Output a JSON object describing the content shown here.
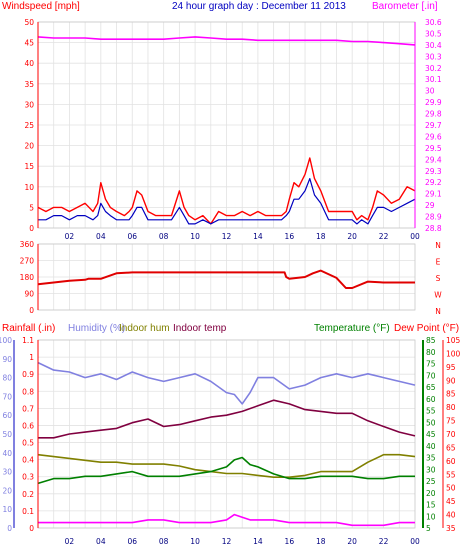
{
  "header": {
    "wind_title": "Windspeed [mph]",
    "graph_title": "24 hour graph day : December 11 2013",
    "baro_title": "Barometer [.in]"
  },
  "lower_header": {
    "rain": "Rainfall (.in)",
    "humidity": "Humidity (%)",
    "indoor_hum": "Indoor hum",
    "indoor_temp": "Indoor temp",
    "temperature": "Temperature (°F)",
    "dew": "Dew Point (°F)"
  },
  "colors": {
    "wind_gust": "#ff0000",
    "wind_avg": "#0000c0",
    "baro": "#ff00ff",
    "direction": "#e00000",
    "rain_axis": "#ff0000",
    "humidity": "#8080e0",
    "indoor_hum": "#808000",
    "indoor_temp": "#800040",
    "temperature": "#008000",
    "dew": "#ff00ff",
    "dew_axis": "#ff0000"
  },
  "chart_data": [
    {
      "type": "line",
      "title": "24 hour graph day : December 11 2013",
      "xlabel": "",
      "x_ticks": [
        "02",
        "04",
        "06",
        "08",
        "10",
        "12",
        "14",
        "16",
        "18",
        "20",
        "22",
        "00"
      ],
      "xlim": [
        0,
        24
      ],
      "left_axis": {
        "label": "Windspeed [mph]",
        "ylim": [
          0,
          50
        ],
        "ticks": [
          0,
          5,
          10,
          15,
          20,
          25,
          30,
          35,
          40,
          45,
          50
        ]
      },
      "right_axis": {
        "label": "Barometer [.in]",
        "ylim": [
          28.8,
          30.6
        ],
        "ticks": [
          "28.8",
          "28.9",
          "29",
          "29.1",
          "29.2",
          "29.3",
          "29.4",
          "29.5",
          "29.6",
          "29.7",
          "29.8",
          "29.9",
          "30",
          "30.1",
          "30.2",
          "30.3",
          "30.4",
          "30.5",
          "30.6"
        ]
      },
      "grid": true,
      "series": [
        {
          "axis": "left",
          "x": [
            0,
            0.5,
            1,
            1.5,
            2,
            2.5,
            3,
            3.5,
            3.8,
            4,
            4.3,
            4.6,
            5,
            5.5,
            5.8,
            6,
            6.3,
            6.6,
            7,
            7.5,
            8,
            8.5,
            9,
            9.3,
            9.6,
            10,
            10.5,
            11,
            11.5,
            12,
            12.5,
            13,
            13.5,
            14,
            14.5,
            15,
            15.5,
            15.8,
            16,
            16.3,
            16.6,
            17,
            17.3,
            17.6,
            18,
            18.5,
            19,
            19.5,
            20,
            20.3,
            20.6,
            21,
            21.3,
            21.6,
            22,
            22.5,
            23,
            23.5,
            24
          ],
          "values": [
            5,
            4,
            5,
            5,
            4,
            5,
            6,
            4,
            6,
            11,
            7,
            5,
            4,
            3,
            4,
            5,
            9,
            8,
            4,
            3,
            3,
            3,
            9,
            5,
            3,
            2,
            3,
            1,
            4,
            3,
            3,
            4,
            3,
            4,
            3,
            3,
            3,
            4,
            7,
            11,
            10,
            13,
            17,
            12,
            9,
            4,
            4,
            4,
            4,
            2,
            3,
            2,
            5,
            9,
            8,
            6,
            7,
            10,
            9
          ]
        },
        {
          "axis": "left",
          "x": [
            0,
            0.5,
            1,
            1.5,
            2,
            2.5,
            3,
            3.5,
            3.8,
            4,
            4.3,
            4.6,
            5,
            5.5,
            5.8,
            6,
            6.3,
            6.6,
            7,
            7.5,
            8,
            8.5,
            9,
            9.3,
            9.6,
            10,
            10.5,
            11,
            11.5,
            12,
            12.5,
            13,
            13.5,
            14,
            14.5,
            15,
            15.5,
            15.8,
            16,
            16.3,
            16.6,
            17,
            17.3,
            17.6,
            18,
            18.5,
            19,
            19.5,
            20,
            20.3,
            20.6,
            21,
            21.3,
            21.6,
            22,
            22.5,
            23,
            23.5,
            24
          ],
          "values": [
            2,
            2,
            3,
            3,
            2,
            3,
            3,
            2,
            3,
            6,
            4,
            3,
            2,
            2,
            2,
            3,
            5,
            5,
            2,
            2,
            2,
            2,
            5,
            3,
            1,
            1,
            2,
            1,
            2,
            2,
            2,
            2,
            2,
            2,
            2,
            2,
            2,
            3,
            4,
            7,
            7,
            9,
            12,
            8,
            6,
            2,
            2,
            2,
            2,
            1,
            2,
            1,
            3,
            5,
            5,
            4,
            5,
            6,
            7
          ]
        },
        {
          "axis": "right",
          "x": [
            0,
            1,
            2,
            3,
            4,
            5,
            6,
            7,
            8,
            9,
            10,
            11,
            12,
            13,
            14,
            15,
            16,
            17,
            18,
            19,
            20,
            21,
            22,
            23,
            24
          ],
          "values": [
            30.47,
            30.46,
            30.46,
            30.46,
            30.45,
            30.45,
            30.45,
            30.45,
            30.45,
            30.46,
            30.47,
            30.46,
            30.45,
            30.45,
            30.44,
            30.44,
            30.44,
            30.44,
            30.44,
            30.44,
            30.43,
            30.43,
            30.42,
            30.41,
            30.4
          ]
        }
      ]
    },
    {
      "type": "line",
      "xlim": [
        0,
        24
      ],
      "y_ticks_left": [
        0,
        90,
        180,
        270,
        360
      ],
      "y_ticks_right": [
        "N",
        "W",
        "S",
        "E",
        "N"
      ],
      "ylim": [
        0,
        360
      ],
      "series": [
        {
          "x": [
            0,
            1,
            2,
            3,
            3.2,
            4,
            5,
            6,
            8,
            10,
            12,
            14,
            15.7,
            15.8,
            16,
            17,
            17.5,
            18,
            19,
            19.6,
            20,
            21,
            22,
            23,
            24
          ],
          "values": [
            140,
            150,
            160,
            165,
            170,
            170,
            200,
            205,
            205,
            205,
            205,
            205,
            205,
            180,
            170,
            180,
            200,
            215,
            175,
            120,
            120,
            155,
            150,
            150,
            150
          ]
        }
      ]
    },
    {
      "type": "line",
      "x_ticks": [
        "02",
        "04",
        "06",
        "08",
        "10",
        "12",
        "14",
        "16",
        "18",
        "20",
        "22",
        "00"
      ],
      "xlim": [
        0,
        24
      ],
      "axes": {
        "rain": {
          "label": "Rainfall (.in)",
          "ylim": [
            0,
            1.1
          ],
          "ticks": [
            0,
            0.1,
            0.2,
            0.3,
            0.4,
            0.5,
            0.6,
            0.7,
            0.8,
            0.9,
            1,
            1.1
          ]
        },
        "humidity": {
          "label": "Humidity (%)",
          "ylim": [
            0,
            100
          ],
          "ticks": [
            0,
            10,
            20,
            30,
            40,
            50,
            60,
            70,
            80,
            90,
            100
          ]
        },
        "temperature": {
          "label": "Temperature (°F)",
          "ylim": [
            5,
            85
          ],
          "ticks": [
            5,
            10,
            15,
            20,
            25,
            30,
            35,
            40,
            45,
            50,
            55,
            60,
            65,
            70,
            75,
            80,
            85
          ]
        },
        "dew": {
          "label": "Dew Point (°F)",
          "ylim": [
            35,
            105
          ],
          "ticks": [
            35,
            40,
            45,
            50,
            55,
            60,
            65,
            70,
            75,
            80,
            85,
            90,
            95,
            100,
            105
          ]
        }
      },
      "series": [
        {
          "axis": "humidity",
          "x": [
            0,
            1,
            2,
            3,
            4,
            5,
            6,
            7,
            8,
            9,
            10,
            11,
            12,
            12.5,
            13,
            13.5,
            14,
            15,
            16,
            17,
            18,
            19,
            20,
            21,
            22,
            23,
            24
          ],
          "values": [
            88,
            84,
            83,
            80,
            82,
            79,
            83,
            80,
            78,
            80,
            82,
            78,
            72,
            71,
            66,
            72,
            80,
            80,
            74,
            76,
            80,
            82,
            80,
            82,
            80,
            78,
            76
          ]
        },
        {
          "axis": "humidity",
          "x": [
            0,
            1,
            2,
            3,
            4,
            5,
            6,
            7,
            8,
            9,
            10,
            11,
            12,
            13,
            14,
            15,
            16,
            17,
            18,
            19,
            20,
            21,
            22,
            23,
            24
          ],
          "values": [
            39,
            38,
            37,
            36,
            35,
            35,
            34,
            34,
            34,
            33,
            31,
            30,
            29,
            29,
            28,
            27,
            27,
            28,
            30,
            30,
            30,
            35,
            39,
            39,
            38
          ]
        },
        {
          "axis": "humidity",
          "x": [
            0,
            1,
            2,
            3,
            4,
            5,
            6,
            7,
            8,
            9,
            10,
            11,
            12,
            13,
            14,
            15,
            16,
            17,
            18,
            19,
            20,
            21,
            22,
            23,
            24
          ],
          "values": [
            48,
            48,
            50,
            51,
            52,
            53,
            56,
            58,
            54,
            55,
            57,
            59,
            60,
            62,
            65,
            68,
            66,
            63,
            62,
            61,
            61,
            57,
            54,
            51,
            49
          ]
        },
        {
          "axis": "temperature",
          "x": [
            0,
            1,
            2,
            3,
            4,
            5,
            6,
            7,
            8,
            9,
            10,
            11,
            12,
            12.5,
            13,
            13.5,
            14,
            15,
            16,
            17,
            18,
            19,
            20,
            21,
            22,
            23,
            24
          ],
          "values": [
            24,
            26,
            26,
            27,
            27,
            28,
            29,
            27,
            27,
            27,
            28,
            29,
            31,
            34,
            35,
            32,
            31,
            28,
            26,
            26,
            27,
            27,
            27,
            26,
            26,
            27,
            27
          ]
        },
        {
          "axis": "dew",
          "x": [
            0,
            1,
            2,
            3,
            4,
            5,
            6,
            7,
            8,
            9,
            10,
            11,
            12,
            12.5,
            13,
            13.5,
            14,
            15,
            16,
            17,
            18,
            19,
            20,
            21,
            22,
            23,
            24
          ],
          "values": [
            37,
            37,
            37,
            37,
            37,
            37,
            37,
            38,
            38,
            37,
            37,
            37,
            38,
            40,
            39,
            38,
            38,
            38,
            37,
            37,
            37,
            37,
            36,
            36,
            36,
            37,
            37
          ]
        }
      ]
    }
  ]
}
